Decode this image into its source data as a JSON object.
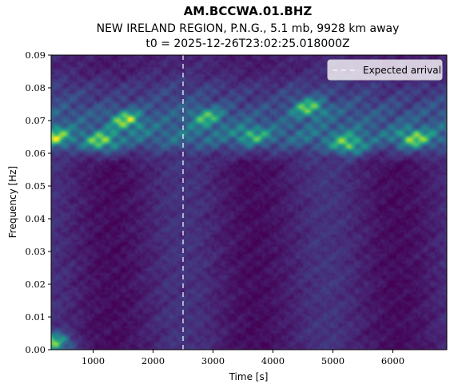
{
  "chart_data": {
    "type": "heatmap",
    "title": "AM.BCCWA.01.BHZ",
    "subtitle": "NEW IRELAND REGION, P.N.G., 5.1 mb, 9928 km away",
    "subtitle2": "t0 = 2025-12-26T23:02:25.018000Z",
    "xlabel": "Time [s]",
    "ylabel": "Frequency [Hz]",
    "xlim": [
      300,
      6900
    ],
    "ylim": [
      0.0,
      0.09
    ],
    "x_ticks": [
      1000,
      2000,
      3000,
      4000,
      5000,
      6000
    ],
    "x_tick_labels": [
      "1000",
      "2000",
      "3000",
      "4000",
      "5000",
      "6000"
    ],
    "y_ticks": [
      0.0,
      0.01,
      0.02,
      0.03,
      0.04,
      0.05,
      0.06,
      0.07,
      0.08,
      0.09
    ],
    "y_tick_labels": [
      "0.00",
      "0.01",
      "0.02",
      "0.03",
      "0.04",
      "0.05",
      "0.06",
      "0.07",
      "0.08",
      "0.09"
    ],
    "colormap": "viridis",
    "grid": false,
    "legend": {
      "placement": "upper right",
      "entries": [
        "Expected arrival"
      ]
    },
    "expected_arrival": {
      "time": 2500,
      "style": "dashed",
      "color": "#ffffff",
      "label": "Expected arrival"
    },
    "energy_bands": [
      {
        "freq": 0.065,
        "strength": 0.9
      },
      {
        "freq": 0.072,
        "strength": 0.6
      },
      {
        "freq": 0.079,
        "strength": 0.3
      }
    ],
    "hot_spots": [
      {
        "time": 1550,
        "freq": 0.07,
        "value": 0.85
      },
      {
        "time": 1150,
        "freq": 0.0635,
        "value": 0.8
      },
      {
        "time": 350,
        "freq": 0.065,
        "value": 0.75
      },
      {
        "time": 4600,
        "freq": 0.074,
        "value": 0.75
      },
      {
        "time": 5250,
        "freq": 0.0625,
        "value": 0.8
      },
      {
        "time": 6350,
        "freq": 0.0645,
        "value": 0.8
      },
      {
        "time": 2900,
        "freq": 0.071,
        "value": 0.6
      },
      {
        "time": 3650,
        "freq": 0.0655,
        "value": 0.55
      },
      {
        "time": 350,
        "freq": 0.002,
        "value": 0.95
      }
    ]
  }
}
